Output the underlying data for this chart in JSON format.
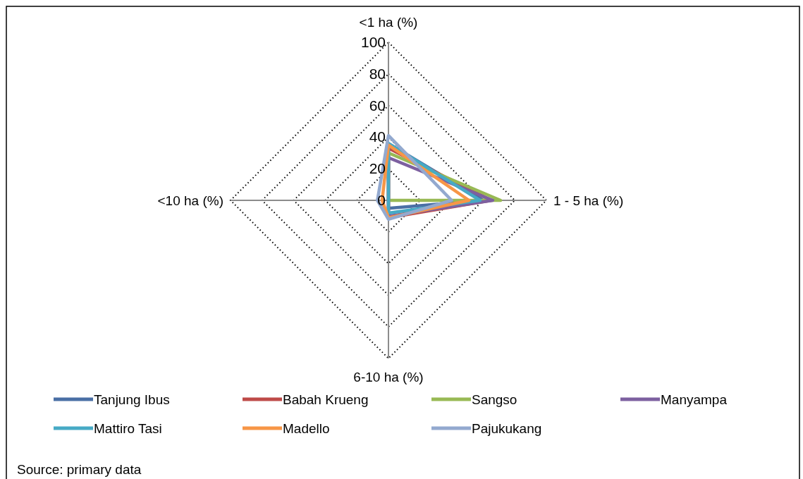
{
  "chart_data": {
    "type": "radar",
    "categories": [
      "<1 ha (%)",
      "1 - 5 ha  (%)",
      "6-10 ha  (%)",
      "<10 ha  (%)"
    ],
    "ylim": [
      0,
      100
    ],
    "yticks": [
      0,
      20,
      40,
      60,
      80,
      100
    ],
    "grid": true,
    "legend": "bottom",
    "line_style": "solid",
    "marker": "none",
    "annotations": [
      "Source: primary data"
    ],
    "series": [
      {
        "name": "Tanjung Ibus",
        "color": "#4a6fa5",
        "values": [
          36,
          60,
          5,
          0
        ]
      },
      {
        "name": "Babah Krueng",
        "color": "#be4b48",
        "values": [
          33,
          65,
          11,
          0
        ]
      },
      {
        "name": "Sangso",
        "color": "#98b954",
        "values": [
          30,
          71,
          0,
          0
        ]
      },
      {
        "name": "Manyampa",
        "color": "#7d60a0",
        "values": [
          27,
          66,
          10,
          0
        ]
      },
      {
        "name": "Mattiro Tasi",
        "color": "#46aac5",
        "values": [
          36,
          58,
          8,
          0
        ]
      },
      {
        "name": "Madello",
        "color": "#f79646",
        "values": [
          35,
          51,
          11,
          4
        ]
      },
      {
        "name": "Pajukukang",
        "color": "#93a9cf",
        "values": [
          41,
          40,
          12,
          7
        ]
      }
    ]
  }
}
